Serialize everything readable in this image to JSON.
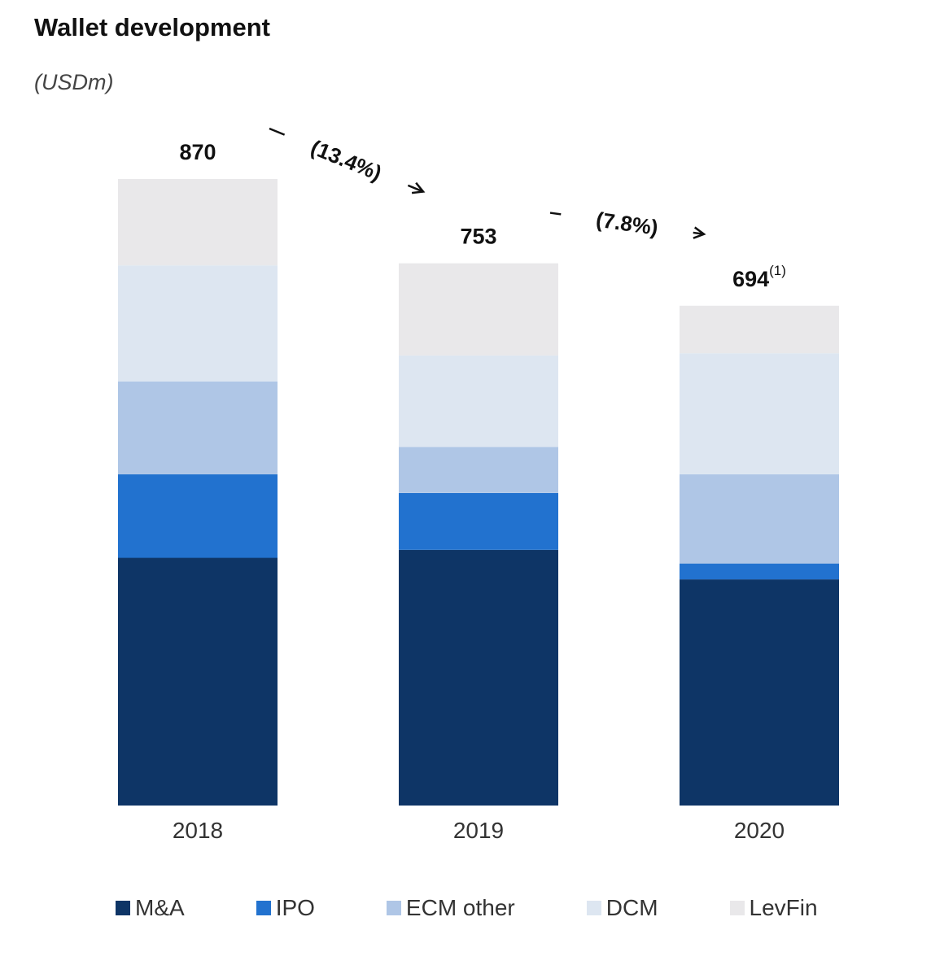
{
  "chart_data": {
    "type": "bar",
    "stacked": true,
    "title": "Wallet development",
    "subtitle": "(USDm)",
    "categories": [
      "2018",
      "2019",
      "2020"
    ],
    "totals": [
      "870",
      "753",
      "694"
    ],
    "total_footnotes": [
      "",
      "",
      "(1)"
    ],
    "series": [
      {
        "name": "M&A",
        "color": "#0e3566",
        "values": [
          344,
          355,
          314
        ]
      },
      {
        "name": "IPO",
        "color": "#2272cf",
        "values": [
          116,
          79,
          22
        ]
      },
      {
        "name": "ECM other",
        "color": "#afc6e6",
        "values": [
          129,
          64,
          124
        ]
      },
      {
        "name": "DCM",
        "color": "#dde6f1",
        "values": [
          161,
          127,
          168
        ]
      },
      {
        "name": "LevFin",
        "color": "#e9e8ea",
        "values": [
          120,
          128,
          66
        ]
      }
    ],
    "annotations": [
      {
        "label": "(13.4%)",
        "from": "2018",
        "to": "2019"
      },
      {
        "label": "(7.8%)",
        "from": "2019",
        "to": "2020"
      }
    ],
    "ylim": [
      0,
      870
    ],
    "legend_position": "bottom"
  }
}
